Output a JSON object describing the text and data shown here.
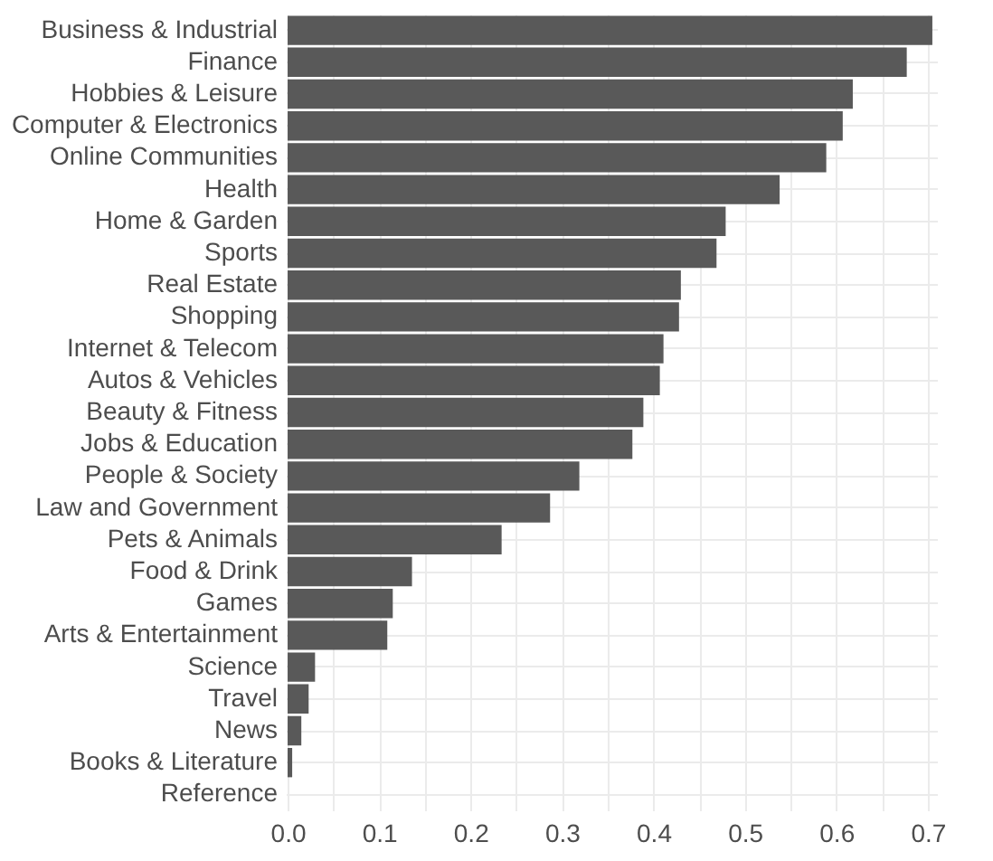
{
  "chart_data": {
    "type": "bar",
    "orientation": "horizontal",
    "categories": [
      "Business & Industrial",
      "Finance",
      "Hobbies & Leisure",
      "Computer & Electronics",
      "Online Communities",
      "Health",
      "Home & Garden",
      "Sports",
      "Real Estate",
      "Shopping",
      "Internet & Telecom",
      "Autos & Vehicles",
      "Beauty & Fitness",
      "Jobs & Education",
      "People & Society",
      "Law and Government",
      "Pets & Animals",
      "Food & Drink",
      "Games",
      "Arts & Entertainment",
      "Science",
      "Travel",
      "News",
      "Books & Literature",
      "Reference"
    ],
    "values": [
      0.705,
      0.677,
      0.618,
      0.607,
      0.589,
      0.538,
      0.479,
      0.469,
      0.43,
      0.428,
      0.411,
      0.407,
      0.389,
      0.377,
      0.319,
      0.287,
      0.234,
      0.136,
      0.115,
      0.109,
      0.03,
      0.023,
      0.015,
      0.005,
      0
    ],
    "color": "#595959",
    "xlim": [
      -0.002,
      0.71
    ],
    "xticks": [
      {
        "value": 0,
        "label": "0.0"
      },
      {
        "value": 0.05,
        "label": null
      },
      0.1,
      {
        "value": 0.15,
        "label": null
      },
      0.2,
      {
        "value": 0.25,
        "label": null
      },
      0.3,
      {
        "value": 0.35,
        "label": null
      },
      0.4,
      {
        "value": 0.45,
        "label": null
      },
      0.5,
      {
        "value": 0.55,
        "label": null
      },
      0.6,
      {
        "value": 0.65,
        "label": null
      },
      0.7
    ],
    "grid": true
  }
}
